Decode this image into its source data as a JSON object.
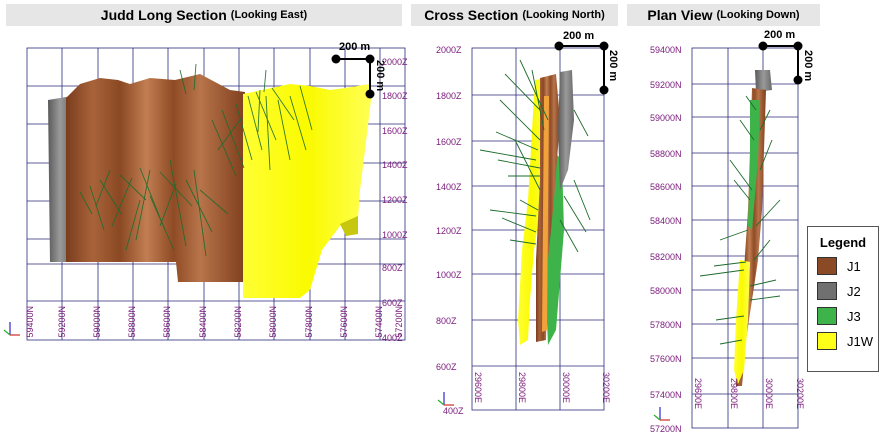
{
  "panels": [
    {
      "title": "Judd Long Section",
      "subtitle": "(Looking East)"
    },
    {
      "title": "Cross Section",
      "subtitle": "(Looking North)"
    },
    {
      "title": "Plan View",
      "subtitle": "(Looking Down)"
    }
  ],
  "long_section": {
    "x_ticks": [
      "59400N",
      "59200N",
      "59000N",
      "58800N",
      "58600N",
      "58400N",
      "58200N",
      "58000N",
      "57800N",
      "57600N",
      "57400N",
      "57200N"
    ],
    "y_ticks": [
      "2000Z",
      "1800Z",
      "1600Z",
      "1400Z",
      "1200Z",
      "1000Z",
      "800Z",
      "600Z",
      "400Z"
    ],
    "scale_h": "200 m",
    "scale_v": "200 m"
  },
  "cross_section": {
    "y_ticks": [
      "2000Z",
      "1800Z",
      "1600Z",
      "1400Z",
      "1200Z",
      "1000Z",
      "800Z",
      "600Z",
      "400Z"
    ],
    "x_ticks": [
      "29600E",
      "29800E",
      "30000E",
      "30200E"
    ],
    "scale_h": "200 m",
    "scale_v": "200 m"
  },
  "plan_view": {
    "y_ticks": [
      "59400N",
      "59200N",
      "59000N",
      "58800N",
      "58600N",
      "58400N",
      "58200N",
      "58000N",
      "57800N",
      "57600N",
      "57400N",
      "57200N"
    ],
    "x_ticks": [
      "29600E",
      "29800E",
      "30000E",
      "30200E"
    ],
    "scale_h": "200 m",
    "scale_v": "200 m"
  },
  "legend": {
    "title": "Legend",
    "items": [
      {
        "label": "J1",
        "color": "#8b4a26"
      },
      {
        "label": "J2",
        "color": "#707070"
      },
      {
        "label": "J3",
        "color": "#3db34a"
      },
      {
        "label": "J1W",
        "color": "#ffff1a"
      }
    ]
  }
}
